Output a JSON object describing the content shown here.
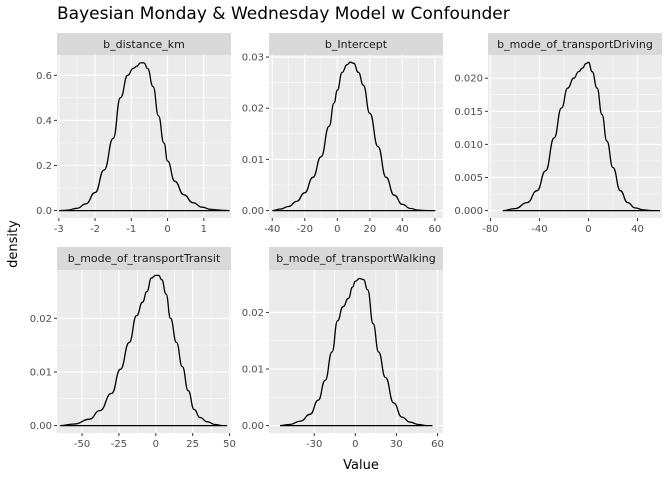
{
  "figure": {
    "title": "Bayesian Monday & Wednesday Model w Confounder",
    "xlabel": "Value",
    "ylabel": "density"
  },
  "colors": {
    "panel_bg": "#ebebeb",
    "strip_bg": "#d9d9d9",
    "grid_major": "#ffffff",
    "curve": "#000000",
    "tick_text": "#4d4d4d",
    "strip_text": "#1a1a1a"
  },
  "chart_data": [
    {
      "type": "line",
      "facet": "b_distance_km",
      "xlim": [
        -3.05,
        1.75
      ],
      "ylim": [
        -0.033,
        0.69
      ],
      "xticks": [
        -3,
        -2,
        -1,
        0,
        1
      ],
      "xtick_labels": [
        "-3",
        "-2",
        "-1",
        "0",
        "1"
      ],
      "yticks": [
        0.0,
        0.2,
        0.4,
        0.6
      ],
      "ytick_labels": [
        "0.0",
        "0.2",
        "0.4",
        "0.6"
      ],
      "x": [
        -3.0,
        -2.75,
        -2.5,
        -2.25,
        -2.0,
        -1.75,
        -1.5,
        -1.3,
        -1.1,
        -0.95,
        -0.85,
        -0.75,
        -0.65,
        -0.55,
        -0.4,
        -0.25,
        -0.1,
        0.0,
        0.2,
        0.45,
        0.7,
        0.95,
        1.2,
        1.45,
        1.7
      ],
      "y": [
        0.0,
        0.002,
        0.01,
        0.03,
        0.08,
        0.18,
        0.32,
        0.5,
        0.6,
        0.63,
        0.64,
        0.655,
        0.655,
        0.63,
        0.55,
        0.42,
        0.3,
        0.22,
        0.13,
        0.07,
        0.035,
        0.015,
        0.005,
        0.002,
        0.0
      ]
    },
    {
      "type": "line",
      "facet": "b_Intercept",
      "xlim": [
        -42,
        65
      ],
      "ylim": [
        -0.00145,
        0.0304
      ],
      "xticks": [
        -40,
        -20,
        0,
        20,
        40,
        60
      ],
      "xtick_labels": [
        "-40",
        "-20",
        "0",
        "20",
        "40",
        "60"
      ],
      "yticks": [
        0.0,
        0.01,
        0.02,
        0.03
      ],
      "ytick_labels": [
        "0.00",
        "0.01",
        "0.02",
        "0.03"
      ],
      "x": [
        -40,
        -35,
        -30,
        -25,
        -20,
        -15,
        -10,
        -5,
        -2,
        0,
        3,
        6,
        8,
        10,
        13,
        16,
        20,
        25,
        30,
        35,
        40,
        45,
        50,
        55,
        60
      ],
      "y": [
        0.0,
        0.0003,
        0.0008,
        0.0018,
        0.0035,
        0.0065,
        0.0105,
        0.0165,
        0.021,
        0.0235,
        0.027,
        0.0285,
        0.029,
        0.0288,
        0.027,
        0.0245,
        0.019,
        0.0125,
        0.0065,
        0.003,
        0.0012,
        0.0004,
        0.0001,
        0.0,
        0.0
      ]
    },
    {
      "type": "line",
      "facet": "b_mode_of_transportDriving",
      "xlim": [
        -82,
        60
      ],
      "ylim": [
        -0.00112,
        0.0235
      ],
      "xticks": [
        -80,
        -40,
        0,
        40
      ],
      "xtick_labels": [
        "-80",
        "-40",
        "0",
        "40"
      ],
      "yticks": [
        0.0,
        0.005,
        0.01,
        0.015,
        0.02
      ],
      "ytick_labels": [
        "0.000",
        "0.005",
        "0.010",
        "0.015",
        "0.020"
      ],
      "x": [
        -70,
        -60,
        -50,
        -42,
        -35,
        -28,
        -22,
        -17,
        -12,
        -8,
        -5,
        -2,
        0,
        3,
        7,
        11,
        15,
        20,
        26,
        32,
        38,
        45,
        52,
        58
      ],
      "y": [
        0.0,
        0.0003,
        0.0012,
        0.003,
        0.006,
        0.011,
        0.0155,
        0.0185,
        0.02,
        0.021,
        0.0215,
        0.0222,
        0.0224,
        0.021,
        0.0185,
        0.0145,
        0.0105,
        0.0065,
        0.003,
        0.0012,
        0.0004,
        0.0001,
        0.0,
        0.0
      ]
    },
    {
      "type": "line",
      "facet": "b_mode_of_transportTransit",
      "xlim": [
        -67,
        51
      ],
      "ylim": [
        -0.00138,
        0.029
      ],
      "xticks": [
        -50,
        -25,
        0,
        25,
        50
      ],
      "xtick_labels": [
        "-50",
        "-25",
        "0",
        "25",
        "50"
      ],
      "yticks": [
        0.0,
        0.01,
        0.02
      ],
      "ytick_labels": [
        "0.00",
        "0.01",
        "0.02"
      ],
      "x": [
        -65,
        -55,
        -45,
        -38,
        -30,
        -24,
        -18,
        -13,
        -9,
        -6,
        -3,
        0,
        2,
        4,
        7,
        10,
        14,
        18,
        22,
        26,
        30,
        35,
        40,
        45,
        48
      ],
      "y": [
        0.0,
        0.0003,
        0.0012,
        0.0028,
        0.006,
        0.0105,
        0.0155,
        0.0205,
        0.023,
        0.025,
        0.0275,
        0.028,
        0.028,
        0.0272,
        0.0245,
        0.02,
        0.0155,
        0.011,
        0.0065,
        0.003,
        0.0015,
        0.0007,
        0.0002,
        0.0,
        0.0
      ]
    },
    {
      "type": "line",
      "facet": "b_mode_of_transportWalking",
      "xlim": [
        -63,
        64
      ],
      "ylim": [
        -0.00131,
        0.0275
      ],
      "xticks": [
        -30,
        0,
        30,
        60
      ],
      "xtick_labels": [
        "-30",
        "0",
        "30",
        "60"
      ],
      "yticks": [
        0.0,
        0.01,
        0.02
      ],
      "ytick_labels": [
        "0.00",
        "0.01",
        "0.02"
      ],
      "x": [
        -55,
        -48,
        -40,
        -33,
        -27,
        -22,
        -17,
        -13,
        -9,
        -5,
        -2,
        0,
        3,
        6,
        9,
        13,
        17,
        22,
        28,
        34,
        40,
        46,
        52,
        56
      ],
      "y": [
        0.0,
        0.0002,
        0.0008,
        0.002,
        0.0045,
        0.008,
        0.013,
        0.0185,
        0.021,
        0.0225,
        0.0245,
        0.0255,
        0.026,
        0.0258,
        0.024,
        0.018,
        0.013,
        0.0085,
        0.004,
        0.0015,
        0.0006,
        0.0002,
        0.0,
        0.0
      ]
    }
  ]
}
